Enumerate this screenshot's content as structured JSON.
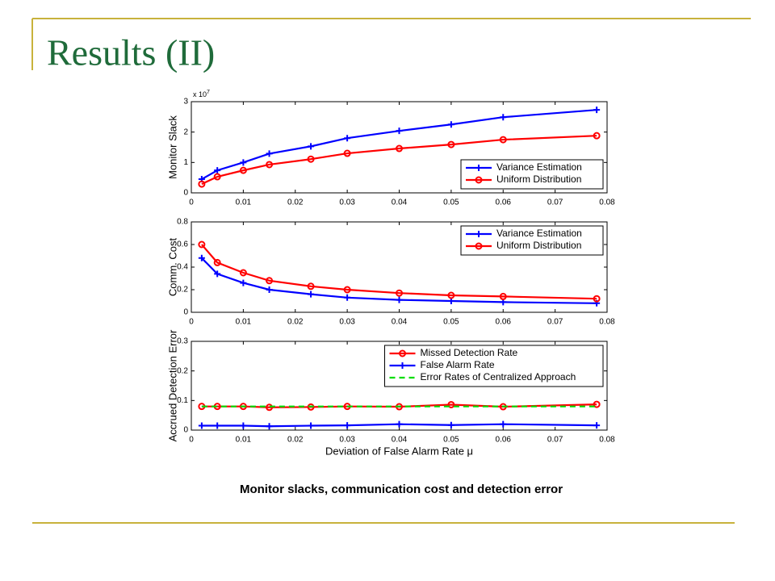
{
  "slide": {
    "title": "Results (II)",
    "caption": "Monitor slacks, communication cost and detection error"
  },
  "chart_data": [
    {
      "type": "line",
      "ylabel": "Monitor Slack",
      "multiplier": "x 10",
      "multiplier_exp": "7",
      "x": [
        0.002,
        0.005,
        0.01,
        0.015,
        0.023,
        0.03,
        0.04,
        0.05,
        0.06,
        0.078
      ],
      "xlim": [
        0,
        0.08
      ],
      "xticks": [
        0,
        0.01,
        0.02,
        0.03,
        0.04,
        0.05,
        0.06,
        0.07,
        0.08
      ],
      "ylim": [
        0,
        3
      ],
      "yticks": [
        0,
        1,
        2,
        3
      ],
      "legend": "lower right",
      "series": [
        {
          "name": "Variance Estimation",
          "color": "#0000ff",
          "marker": "plus",
          "values": [
            0.45,
            0.74,
            1.0,
            1.29,
            1.53,
            1.8,
            2.04,
            2.25,
            2.49,
            2.73
          ]
        },
        {
          "name": "Uniform Distribution",
          "color": "#ff0000",
          "marker": "circle",
          "values": [
            0.29,
            0.53,
            0.74,
            0.93,
            1.11,
            1.3,
            1.46,
            1.59,
            1.75,
            1.88
          ]
        }
      ]
    },
    {
      "type": "line",
      "ylabel": "Comm. Cost",
      "x": [
        0.002,
        0.005,
        0.01,
        0.015,
        0.023,
        0.03,
        0.04,
        0.05,
        0.06,
        0.078
      ],
      "xlim": [
        0,
        0.08
      ],
      "xticks": [
        0,
        0.01,
        0.02,
        0.03,
        0.04,
        0.05,
        0.06,
        0.07,
        0.08
      ],
      "ylim": [
        0,
        0.8
      ],
      "yticks": [
        0,
        0.2,
        0.4,
        0.6,
        0.8
      ],
      "legend": "upper right",
      "series": [
        {
          "name": "Variance Estimation",
          "color": "#0000ff",
          "marker": "plus",
          "values": [
            0.48,
            0.34,
            0.26,
            0.2,
            0.16,
            0.13,
            0.11,
            0.1,
            0.09,
            0.08
          ]
        },
        {
          "name": "Uniform Distribution",
          "color": "#ff0000",
          "marker": "circle",
          "values": [
            0.6,
            0.44,
            0.35,
            0.28,
            0.23,
            0.2,
            0.17,
            0.15,
            0.14,
            0.12
          ]
        }
      ]
    },
    {
      "type": "line",
      "ylabel": "Accrued Detection Error",
      "xlabel": "Deviation of False Alarm Rate μ",
      "x": [
        0.002,
        0.005,
        0.01,
        0.015,
        0.023,
        0.03,
        0.04,
        0.05,
        0.06,
        0.078
      ],
      "xlim": [
        0,
        0.08
      ],
      "xticks": [
        0,
        0.01,
        0.02,
        0.03,
        0.04,
        0.05,
        0.06,
        0.07,
        0.08
      ],
      "ylim": [
        0,
        0.3
      ],
      "yticks": [
        0,
        0.1,
        0.2,
        0.3
      ],
      "legend": "upper right",
      "series": [
        {
          "name": "Missed Detection Rate",
          "color": "#ff0000",
          "marker": "circle",
          "values": [
            0.08,
            0.08,
            0.08,
            0.077,
            0.078,
            0.08,
            0.079,
            0.086,
            0.079,
            0.087
          ]
        },
        {
          "name": "False Alarm Rate",
          "color": "#0000ff",
          "marker": "plus",
          "values": [
            0.015,
            0.015,
            0.015,
            0.013,
            0.015,
            0.016,
            0.02,
            0.017,
            0.02,
            0.016
          ]
        },
        {
          "name": "Error Rates of Centralized Approach",
          "color": "#00dd00",
          "marker": "none",
          "dash": true,
          "values": [
            0.08,
            0.08,
            0.08,
            0.08,
            0.08,
            0.08,
            0.08,
            0.08,
            0.08,
            0.08
          ]
        }
      ]
    }
  ]
}
